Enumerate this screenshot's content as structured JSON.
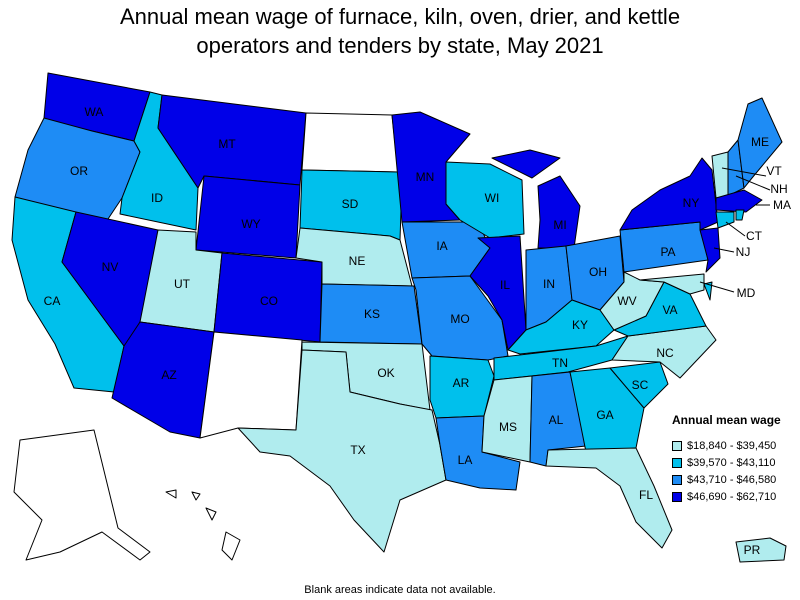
{
  "title_line1": "Annual mean wage of furnace, kiln, oven, drier, and kettle",
  "title_line2": "operators and tenders by state, May 2021",
  "legend": {
    "title": "Annual mean wage",
    "items": [
      {
        "label": "$18,840 - $39,450",
        "color": "#b0ecee"
      },
      {
        "label": "$39,570 - $43,110",
        "color": "#00c0ec"
      },
      {
        "label": "$43,710 - $46,580",
        "color": "#1e8cf5"
      },
      {
        "label": "$46,690 - $62,710",
        "color": "#0000e8"
      }
    ]
  },
  "no_data_color": "#ffffff",
  "footnote": "Blank areas indicate data not available.",
  "states": [
    {
      "abbr": "WA",
      "bin": 3
    },
    {
      "abbr": "OR",
      "bin": 2
    },
    {
      "abbr": "CA",
      "bin": 1
    },
    {
      "abbr": "ID",
      "bin": 1
    },
    {
      "abbr": "NV",
      "bin": 3
    },
    {
      "abbr": "MT",
      "bin": 3
    },
    {
      "abbr": "WY",
      "bin": 3
    },
    {
      "abbr": "UT",
      "bin": 0
    },
    {
      "abbr": "AZ",
      "bin": 3
    },
    {
      "abbr": "CO",
      "bin": 3
    },
    {
      "abbr": "NM",
      "bin": null
    },
    {
      "abbr": "ND",
      "bin": null
    },
    {
      "abbr": "SD",
      "bin": 1
    },
    {
      "abbr": "NE",
      "bin": 0
    },
    {
      "abbr": "KS",
      "bin": 2
    },
    {
      "abbr": "OK",
      "bin": 0
    },
    {
      "abbr": "TX",
      "bin": 0
    },
    {
      "abbr": "MN",
      "bin": 3
    },
    {
      "abbr": "IA",
      "bin": 2
    },
    {
      "abbr": "MO",
      "bin": 2
    },
    {
      "abbr": "AR",
      "bin": 1
    },
    {
      "abbr": "LA",
      "bin": 2
    },
    {
      "abbr": "WI",
      "bin": 1
    },
    {
      "abbr": "IL",
      "bin": 3
    },
    {
      "abbr": "MI",
      "bin": 3
    },
    {
      "abbr": "IN",
      "bin": 2
    },
    {
      "abbr": "OH",
      "bin": 2
    },
    {
      "abbr": "KY",
      "bin": 1
    },
    {
      "abbr": "TN",
      "bin": 1
    },
    {
      "abbr": "MS",
      "bin": 0
    },
    {
      "abbr": "AL",
      "bin": 2
    },
    {
      "abbr": "GA",
      "bin": 1
    },
    {
      "abbr": "FL",
      "bin": 0
    },
    {
      "abbr": "SC",
      "bin": 1
    },
    {
      "abbr": "NC",
      "bin": 0
    },
    {
      "abbr": "VA",
      "bin": 1
    },
    {
      "abbr": "WV",
      "bin": 0
    },
    {
      "abbr": "PA",
      "bin": 2
    },
    {
      "abbr": "NY",
      "bin": 3
    },
    {
      "abbr": "ME",
      "bin": 2
    },
    {
      "abbr": "VT",
      "bin": 0
    },
    {
      "abbr": "NH",
      "bin": 2
    },
    {
      "abbr": "MA",
      "bin": 3
    },
    {
      "abbr": "CT",
      "bin": 1
    },
    {
      "abbr": "RI",
      "bin": 1
    },
    {
      "abbr": "NJ",
      "bin": 3
    },
    {
      "abbr": "DE",
      "bin": 1
    },
    {
      "abbr": "MD",
      "bin": 0
    },
    {
      "abbr": "AK",
      "bin": null
    },
    {
      "abbr": "HI",
      "bin": null
    },
    {
      "abbr": "PR",
      "bin": 0
    }
  ]
}
